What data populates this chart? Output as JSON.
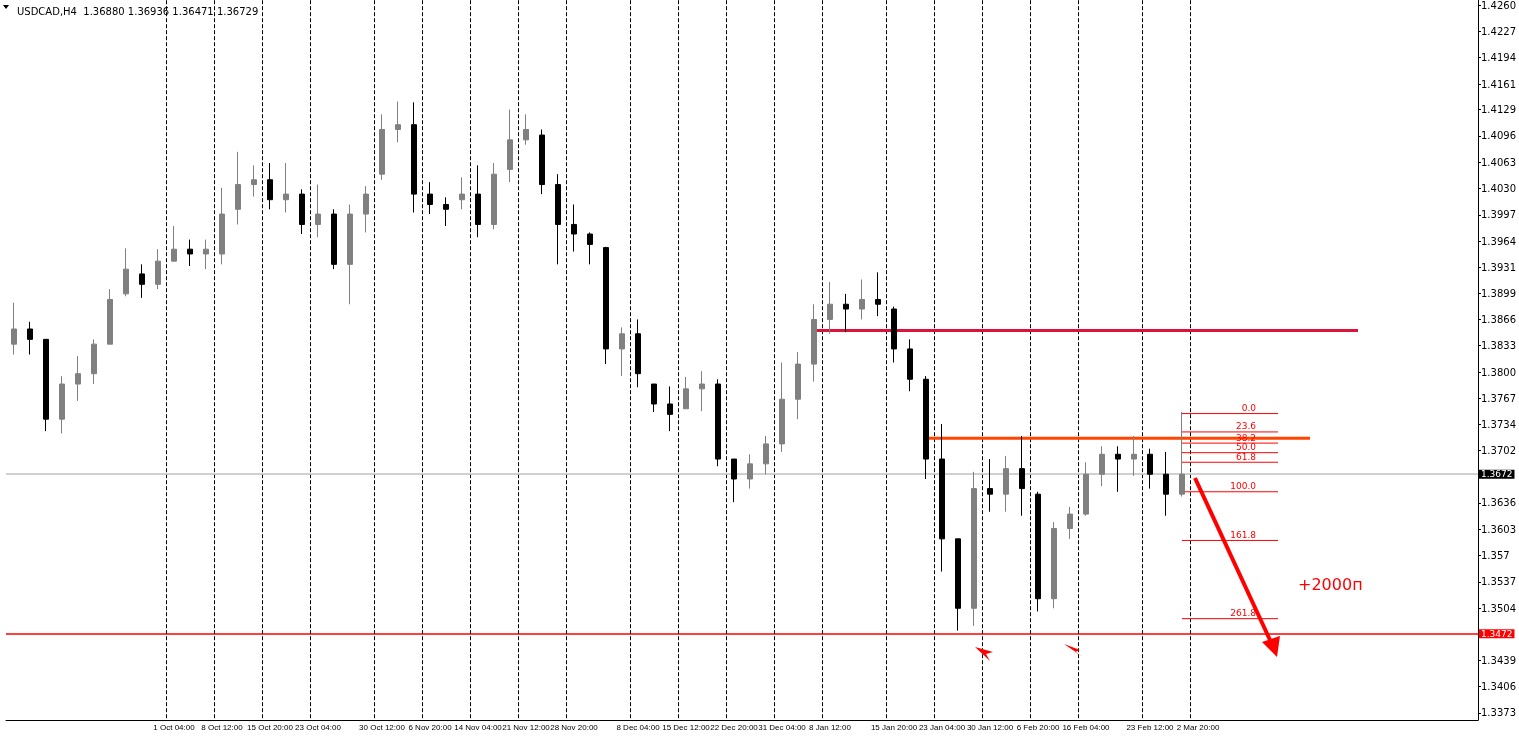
{
  "chart_data": {
    "type": "candlestick",
    "title": "USDCAD,H4  1.36880 1.36936 1.36471 1.36729",
    "categories": [
      null,
      null,
      null,
      null,
      null,
      null,
      null,
      null,
      null,
      null,
      "1 Oct 04:00",
      null,
      null,
      "8 Oct 12:00",
      null,
      null,
      "15 Oct 20:00",
      null,
      null,
      "23 Oct 04:00",
      null,
      null,
      null,
      "30 Oct 12:00",
      null,
      null,
      "6 Nov 20:00",
      null,
      null,
      "14 Nov 04:00",
      null,
      null,
      "21 Nov 12:00",
      null,
      null,
      "28 Nov 20:00",
      null,
      null,
      null,
      "8 Dec 04:00",
      null,
      null,
      "15 Dec 12:00",
      null,
      null,
      "22 Dec 20:00",
      null,
      null,
      "31 Dec 04:00",
      null,
      null,
      "8 Jan 12:00",
      null,
      null,
      null,
      "15 Jan 20:00",
      null,
      null,
      "23 Jan 04:00",
      null,
      null,
      "30 Jan 12:00",
      null,
      null,
      "6 Feb 20:00",
      null,
      null,
      "16 Feb 04:00",
      null,
      null,
      null,
      "23 Feb 12:00",
      null,
      null,
      "2 Mar 20:00",
      null,
      null,
      null,
      null,
      null,
      null,
      null,
      null,
      null,
      null,
      null,
      null,
      null,
      null,
      null,
      null,
      null
    ],
    "ohlc": [
      [
        1.3835,
        1.3887,
        1.3822,
        1.3854
      ],
      [
        1.3854,
        1.3863,
        1.3822,
        1.3841
      ],
      [
        1.3841,
        1.3841,
        1.3726,
        1.3741
      ],
      [
        1.3741,
        1.3795,
        1.3723,
        1.3785
      ],
      [
        1.3785,
        1.382,
        1.3764,
        1.3798
      ],
      [
        1.3798,
        1.3841,
        1.3785,
        1.3835
      ],
      [
        1.3835,
        1.3904,
        1.3835,
        1.3891
      ],
      [
        1.3898,
        1.3955,
        1.3895,
        1.3929
      ],
      [
        1.3923,
        1.3935,
        1.3893,
        1.391
      ],
      [
        1.391,
        1.3954,
        1.3904,
        1.3939
      ],
      [
        1.3939,
        1.3983,
        1.3939,
        1.3954
      ],
      [
        1.3954,
        1.3966,
        1.3933,
        1.3948
      ],
      [
        1.3948,
        1.3966,
        1.3929,
        1.3954
      ],
      [
        1.3948,
        1.4031,
        1.3935,
        1.3998
      ],
      [
        1.4004,
        1.4076,
        1.3985,
        1.4035
      ],
      [
        1.4035,
        1.4059,
        1.402,
        1.4041
      ],
      [
        1.4041,
        1.4062,
        1.4004,
        1.4016
      ],
      [
        1.4016,
        1.4062,
        1.4,
        1.4023
      ],
      [
        1.4023,
        1.4029,
        1.3973,
        1.3985
      ],
      [
        1.3985,
        1.4035,
        1.3969,
        1.3998
      ],
      [
        1.3998,
        1.4004,
        1.3929,
        1.3935
      ],
      [
        1.3935,
        1.401,
        1.3885,
        1.3998
      ],
      [
        1.3998,
        1.4033,
        1.3975,
        1.4023
      ],
      [
        1.4048,
        1.4123,
        1.4041,
        1.4104
      ],
      [
        1.4104,
        1.4139,
        1.4088,
        1.411
      ],
      [
        1.411,
        1.4138,
        1.4,
        1.4023
      ],
      [
        1.4023,
        1.4038,
        1.3998,
        1.401
      ],
      [
        1.401,
        1.4019,
        1.3983,
        1.4004
      ],
      [
        1.4016,
        1.4044,
        1.4004,
        1.4023
      ],
      [
        1.4023,
        1.4059,
        1.3969,
        1.3985
      ],
      [
        1.3985,
        1.4062,
        1.3979,
        1.4048
      ],
      [
        1.4054,
        1.4129,
        1.4038,
        1.4091
      ],
      [
        1.4091,
        1.4123,
        1.4085,
        1.4104
      ],
      [
        1.4097,
        1.4104,
        1.4023,
        1.4035
      ],
      [
        1.4035,
        1.4048,
        1.3935,
        1.3985
      ],
      [
        1.3985,
        1.401,
        1.3951,
        1.3973
      ],
      [
        1.3973,
        1.3975,
        1.3935,
        1.396
      ],
      [
        1.3956,
        1.3957,
        1.381,
        1.3829
      ],
      [
        1.3829,
        1.3856,
        1.3795,
        1.3848
      ],
      [
        1.3848,
        1.3866,
        1.3781,
        1.3798
      ],
      [
        1.3785,
        1.3785,
        1.375,
        1.376
      ],
      [
        1.376,
        1.3782,
        1.3726,
        1.3747
      ],
      [
        1.3754,
        1.3794,
        1.3754,
        1.3779
      ],
      [
        1.3779,
        1.3801,
        1.3751,
        1.3785
      ],
      [
        1.3785,
        1.3791,
        1.3682,
        1.3691
      ],
      [
        1.3691,
        1.3691,
        1.3637,
        1.3666
      ],
      [
        1.3666,
        1.3697,
        1.3654,
        1.3685
      ],
      [
        1.3685,
        1.372,
        1.3672,
        1.371
      ],
      [
        1.371,
        1.3812,
        1.37,
        1.3766
      ],
      [
        1.3766,
        1.3825,
        1.3741,
        1.381
      ],
      [
        1.381,
        1.3885,
        1.3788,
        1.3866
      ],
      [
        1.3866,
        1.3913,
        1.3848,
        1.3885
      ],
      [
        1.3885,
        1.3898,
        1.385,
        1.3879
      ],
      [
        1.3879,
        1.3916,
        1.3866,
        1.3891
      ],
      [
        1.3891,
        1.3925,
        1.387,
        1.3885
      ],
      [
        1.3879,
        1.3882,
        1.3812,
        1.3829
      ],
      [
        1.3829,
        1.3841,
        1.3776,
        1.3791
      ],
      [
        1.3791,
        1.3795,
        1.3666,
        1.3691
      ],
      [
        1.3691,
        1.3735,
        1.355,
        1.3591
      ],
      [
        1.3591,
        1.3591,
        1.3476,
        1.3504
      ],
      [
        1.3504,
        1.3675,
        1.3482,
        1.3654
      ],
      [
        1.3654,
        1.3691,
        1.3625,
        1.3647
      ],
      [
        1.3647,
        1.3695,
        1.3625,
        1.3679
      ],
      [
        1.3679,
        1.372,
        1.362,
        1.3654
      ],
      [
        1.3647,
        1.365,
        1.35,
        1.3516
      ],
      [
        1.3516,
        1.3612,
        1.3504,
        1.3604
      ],
      [
        1.3604,
        1.3631,
        1.3591,
        1.3622
      ],
      [
        1.3622,
        1.3687,
        1.362,
        1.3672
      ],
      [
        1.3672,
        1.3707,
        1.3657,
        1.3697
      ],
      [
        1.3697,
        1.3707,
        1.365,
        1.3691
      ],
      [
        1.3691,
        1.372,
        1.367,
        1.3697
      ],
      [
        1.3697,
        1.3704,
        1.3654,
        1.3672
      ],
      [
        1.3672,
        1.37,
        1.362,
        1.3647
      ],
      [
        1.3647,
        1.375,
        1.3644,
        1.3672
      ],
      null,
      null,
      null,
      null,
      null,
      null,
      null,
      null,
      null,
      null,
      null,
      null,
      null,
      null,
      null,
      null,
      null,
      null
    ],
    "series": [
      {
        "type": "line",
        "color": "#dc143c",
        "values": [
          null,
          null,
          null,
          null,
          null,
          null,
          null,
          null,
          null,
          null,
          null,
          null,
          null,
          null,
          null,
          null,
          null,
          null,
          null,
          null,
          null,
          null,
          null,
          null,
          null,
          null,
          null,
          null,
          null,
          null,
          null,
          null,
          null,
          null,
          null,
          null,
          null,
          null,
          null,
          null,
          null,
          null,
          null,
          null,
          null,
          null,
          null,
          null,
          null,
          null,
          1.3852,
          1.3852,
          1.3852,
          1.3852,
          1.3852,
          1.3852,
          1.3852,
          1.3852,
          1.3852,
          1.3852,
          1.3852,
          1.3852,
          1.3852,
          1.3852,
          1.3852,
          1.3852,
          1.3852,
          1.3852,
          1.3852,
          1.3852,
          1.3852,
          1.3852,
          1.3852,
          1.3852,
          1.3852,
          1.3852,
          1.3852,
          1.3852,
          1.3852,
          1.3852,
          1.3852,
          1.3852,
          1.3852,
          1.3852,
          1.3852,
          null,
          null,
          null,
          null,
          null,
          null,
          null
        ]
      },
      {
        "type": "line",
        "color": "#ff4500",
        "values": [
          null,
          null,
          null,
          null,
          null,
          null,
          null,
          null,
          null,
          null,
          null,
          null,
          null,
          null,
          null,
          null,
          null,
          null,
          null,
          null,
          null,
          null,
          null,
          null,
          null,
          null,
          null,
          null,
          null,
          null,
          null,
          null,
          null,
          null,
          null,
          null,
          null,
          null,
          null,
          null,
          null,
          null,
          null,
          null,
          null,
          null,
          null,
          null,
          null,
          null,
          null,
          null,
          null,
          null,
          null,
          null,
          null,
          1.3717,
          1.3717,
          1.3717,
          1.3717,
          1.3717,
          1.3717,
          1.3717,
          1.3717,
          1.3717,
          1.3717,
          1.3717,
          1.3717,
          1.3717,
          1.3717,
          1.3717,
          1.3717,
          1.3717,
          1.3717,
          1.3717,
          1.3717,
          1.3717,
          1.3717,
          1.3717,
          1.3717,
          1.3717,
          null,
          null,
          null,
          null,
          null,
          null,
          null,
          null,
          null,
          null
        ]
      },
      {
        "type": "line",
        "name": "0.0",
        "color": "#ff0000",
        "values": [
          null,
          null,
          null,
          null,
          null,
          null,
          null,
          null,
          null,
          null,
          null,
          null,
          null,
          null,
          null,
          null,
          null,
          null,
          null,
          null,
          null,
          null,
          null,
          null,
          null,
          null,
          null,
          null,
          null,
          null,
          null,
          null,
          null,
          null,
          null,
          null,
          null,
          null,
          null,
          null,
          null,
          null,
          null,
          null,
          null,
          null,
          null,
          null,
          null,
          null,
          null,
          null,
          null,
          null,
          null,
          null,
          null,
          null,
          null,
          null,
          null,
          null,
          null,
          null,
          null,
          null,
          null,
          null,
          null,
          null,
          null,
          null,
          null,
          1.3748,
          1.3748,
          1.3748,
          1.3748,
          1.3748,
          1.3748,
          1.3748,
          null,
          null,
          null,
          null,
          null,
          null,
          null,
          null,
          null,
          null,
          null,
          null
        ]
      },
      {
        "type": "line",
        "name": "23.6",
        "color": "#ff0000",
        "values": [
          null,
          null,
          null,
          null,
          null,
          null,
          null,
          null,
          null,
          null,
          null,
          null,
          null,
          null,
          null,
          null,
          null,
          null,
          null,
          null,
          null,
          null,
          null,
          null,
          null,
          null,
          null,
          null,
          null,
          null,
          null,
          null,
          null,
          null,
          null,
          null,
          null,
          null,
          null,
          null,
          null,
          null,
          null,
          null,
          null,
          null,
          null,
          null,
          null,
          null,
          null,
          null,
          null,
          null,
          null,
          null,
          null,
          null,
          null,
          null,
          null,
          null,
          null,
          null,
          null,
          null,
          null,
          null,
          null,
          null,
          null,
          null,
          null,
          1.3725,
          1.3725,
          1.3725,
          1.3725,
          1.3725,
          1.3725,
          1.3725,
          null,
          null,
          null,
          null,
          null,
          null,
          null,
          null,
          null,
          null,
          null,
          null
        ]
      },
      {
        "type": "line",
        "name": "38.2",
        "color": "#ff0000",
        "values": [
          null,
          null,
          null,
          null,
          null,
          null,
          null,
          null,
          null,
          null,
          null,
          null,
          null,
          null,
          null,
          null,
          null,
          null,
          null,
          null,
          null,
          null,
          null,
          null,
          null,
          null,
          null,
          null,
          null,
          null,
          null,
          null,
          null,
          null,
          null,
          null,
          null,
          null,
          null,
          null,
          null,
          null,
          null,
          null,
          null,
          null,
          null,
          null,
          null,
          null,
          null,
          null,
          null,
          null,
          null,
          null,
          null,
          null,
          null,
          null,
          null,
          null,
          null,
          null,
          null,
          null,
          null,
          null,
          null,
          null,
          null,
          null,
          null,
          1.3711,
          1.3711,
          1.3711,
          1.3711,
          1.3711,
          1.3711,
          1.3711,
          null,
          null,
          null,
          null,
          null,
          null,
          null,
          null,
          null,
          null,
          null,
          null
        ]
      },
      {
        "type": "line",
        "name": "50.0",
        "color": "#ff0000",
        "values": [
          null,
          null,
          null,
          null,
          null,
          null,
          null,
          null,
          null,
          null,
          null,
          null,
          null,
          null,
          null,
          null,
          null,
          null,
          null,
          null,
          null,
          null,
          null,
          null,
          null,
          null,
          null,
          null,
          null,
          null,
          null,
          null,
          null,
          null,
          null,
          null,
          null,
          null,
          null,
          null,
          null,
          null,
          null,
          null,
          null,
          null,
          null,
          null,
          null,
          null,
          null,
          null,
          null,
          null,
          null,
          null,
          null,
          null,
          null,
          null,
          null,
          null,
          null,
          null,
          null,
          null,
          null,
          null,
          null,
          null,
          null,
          null,
          null,
          1.3699,
          1.3699,
          1.3699,
          1.3699,
          1.3699,
          1.3699,
          1.3699,
          null,
          null,
          null,
          null,
          null,
          null,
          null,
          null,
          null,
          null,
          null,
          null
        ]
      },
      {
        "type": "line",
        "name": "61.8",
        "color": "#ff0000",
        "values": [
          null,
          null,
          null,
          null,
          null,
          null,
          null,
          null,
          null,
          null,
          null,
          null,
          null,
          null,
          null,
          null,
          null,
          null,
          null,
          null,
          null,
          null,
          null,
          null,
          null,
          null,
          null,
          null,
          null,
          null,
          null,
          null,
          null,
          null,
          null,
          null,
          null,
          null,
          null,
          null,
          null,
          null,
          null,
          null,
          null,
          null,
          null,
          null,
          null,
          null,
          null,
          null,
          null,
          null,
          null,
          null,
          null,
          null,
          null,
          null,
          null,
          null,
          null,
          null,
          null,
          null,
          null,
          null,
          null,
          null,
          null,
          null,
          null,
          1.3687,
          1.3687,
          1.3687,
          1.3687,
          1.3687,
          1.3687,
          1.3687,
          null,
          null,
          null,
          null,
          null,
          null,
          null,
          null,
          null,
          null,
          null,
          null
        ]
      },
      {
        "type": "line",
        "name": "100.0",
        "color": "#ff0000",
        "values": [
          null,
          null,
          null,
          null,
          null,
          null,
          null,
          null,
          null,
          null,
          null,
          null,
          null,
          null,
          null,
          null,
          null,
          null,
          null,
          null,
          null,
          null,
          null,
          null,
          null,
          null,
          null,
          null,
          null,
          null,
          null,
          null,
          null,
          null,
          null,
          null,
          null,
          null,
          null,
          null,
          null,
          null,
          null,
          null,
          null,
          null,
          null,
          null,
          null,
          null,
          null,
          null,
          null,
          null,
          null,
          null,
          null,
          null,
          null,
          null,
          null,
          null,
          null,
          null,
          null,
          null,
          null,
          null,
          null,
          null,
          null,
          null,
          null,
          1.365,
          1.365,
          1.365,
          1.365,
          1.365,
          1.365,
          1.365,
          null,
          null,
          null,
          null,
          null,
          null,
          null,
          null,
          null,
          null,
          null,
          null
        ]
      },
      {
        "type": "line",
        "name": "161.8",
        "color": "#ff0000",
        "values": [
          null,
          null,
          null,
          null,
          null,
          null,
          null,
          null,
          null,
          null,
          null,
          null,
          null,
          null,
          null,
          null,
          null,
          null,
          null,
          null,
          null,
          null,
          null,
          null,
          null,
          null,
          null,
          null,
          null,
          null,
          null,
          null,
          null,
          null,
          null,
          null,
          null,
          null,
          null,
          null,
          null,
          null,
          null,
          null,
          null,
          null,
          null,
          null,
          null,
          null,
          null,
          null,
          null,
          null,
          null,
          null,
          null,
          null,
          null,
          null,
          null,
          null,
          null,
          null,
          null,
          null,
          null,
          null,
          null,
          null,
          null,
          null,
          null,
          1.3589,
          1.3589,
          1.3589,
          1.3589,
          1.3589,
          1.3589,
          1.3589,
          null,
          null,
          null,
          null,
          null,
          null,
          null,
          null,
          null,
          null,
          null,
          null
        ]
      },
      {
        "type": "line",
        "name": "261.8",
        "color": "#ff0000",
        "values": [
          null,
          null,
          null,
          null,
          null,
          null,
          null,
          null,
          null,
          null,
          null,
          null,
          null,
          null,
          null,
          null,
          null,
          null,
          null,
          null,
          null,
          null,
          null,
          null,
          null,
          null,
          null,
          null,
          null,
          null,
          null,
          null,
          null,
          null,
          null,
          null,
          null,
          null,
          null,
          null,
          null,
          null,
          null,
          null,
          null,
          null,
          null,
          null,
          null,
          null,
          null,
          null,
          null,
          null,
          null,
          null,
          null,
          null,
          null,
          null,
          null,
          null,
          null,
          null,
          null,
          null,
          null,
          null,
          null,
          null,
          null,
          null,
          null,
          1.3491,
          1.3491,
          1.3491,
          1.3491,
          1.3491,
          1.3491,
          1.3491,
          null,
          null,
          null,
          null,
          null,
          null,
          null,
          null,
          null,
          null,
          null,
          null
        ]
      }
    ],
    "ylim": [
      1.3364,
      1.4266
    ],
    "yticks": [
      {
        "value": 1.426,
        "label": "1.4260"
      },
      1.4227,
      1.4194,
      1.4161,
      1.4129,
      1.4096,
      1.4063,
      {
        "value": 1.403,
        "label": "1.4030"
      },
      1.3997,
      1.3964,
      1.3931,
      1.3899,
      1.3866,
      1.3833,
      {
        "value": 1.38,
        "label": "1.3800"
      },
      1.3767,
      1.3734,
      1.3702,
      {
        "value": 1.3669,
        "label": null
      },
      1.3636,
      1.3603,
      1.357,
      1.3537,
      1.3504,
      1.3439,
      1.3406,
      1.3373
    ],
    "ref_lines": [
      {
        "axis": "y",
        "value": 1.3672,
        "label": "1.3672",
        "color": "#c0c0c0"
      },
      {
        "axis": "y",
        "value": 1.3472,
        "label": "1.3472",
        "color": "#ff0000"
      }
    ],
    "annotations": [
      "+2000п"
    ],
    "grid": "x"
  }
}
